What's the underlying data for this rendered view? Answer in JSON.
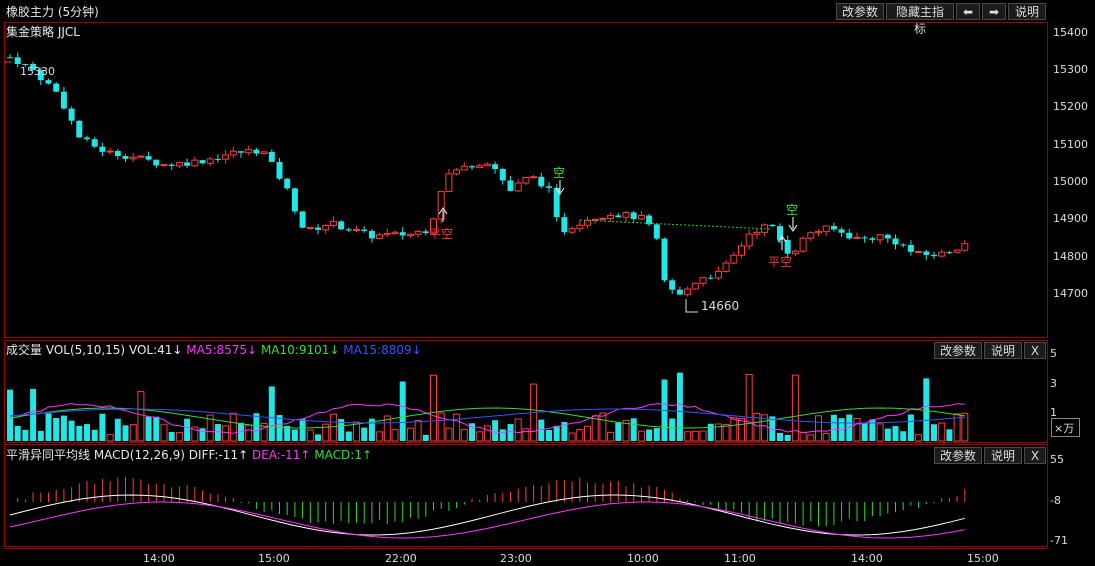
{
  "window": {
    "title": "橡胶主力 (5分钟)",
    "subtitle": "集金策略 JJCL",
    "buttons": {
      "params": "改参数",
      "hide_indicator": "隐藏主指标",
      "prev": "⬅",
      "next": "➡",
      "help": "说明"
    }
  },
  "main_chart": {
    "y_labels": [
      "15400",
      "15300",
      "15200",
      "15100",
      "15000",
      "14900",
      "14800",
      "14700"
    ],
    "annotations": {
      "high": "15330",
      "low": "14660",
      "sig1": "平空",
      "sig2": "空",
      "sig3": "空",
      "sig4": "平空"
    }
  },
  "volume_panel": {
    "title": "成交量 VOL(5,10,15)",
    "vol": "VOL:41↓",
    "ma5": "MA5:8575↓",
    "ma10": "MA10:9101↓",
    "ma15": "MA15:8809↓",
    "buttons": {
      "params": "改参数",
      "help": "说明",
      "close": "X"
    },
    "y_labels": [
      "5",
      "3",
      "1"
    ],
    "unit": "×万",
    "colors": {
      "ma5": "#ff33ff",
      "ma10": "#33dd33",
      "ma15": "#3355ff"
    }
  },
  "macd_panel": {
    "title": "平滑异同平均线 MACD(12,26,9)",
    "diff": "DIFF:-11↑",
    "dea": "DEA:-11↑",
    "macd": "MACD:1↑",
    "buttons": {
      "params": "改参数",
      "help": "说明",
      "close": "X"
    },
    "y_labels": [
      "55",
      "-8",
      "-71"
    ]
  },
  "time_axis": [
    "14:00",
    "15:00",
    "22:00",
    "23:00",
    "10:00",
    "11:00",
    "14:00",
    "15:00"
  ],
  "colors": {
    "up": "#ff3b3b",
    "down": "#22e5e5",
    "frame": "#a00000",
    "text": "#dddddd"
  }
}
